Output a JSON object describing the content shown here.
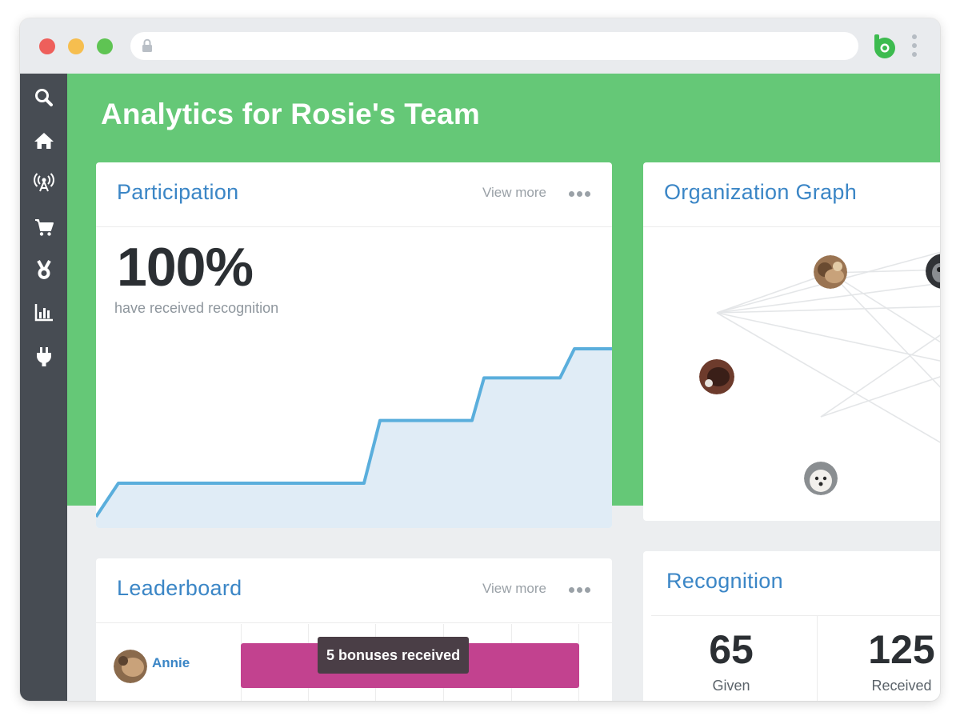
{
  "browser": {
    "controls": [
      "close",
      "minimize",
      "maximize"
    ],
    "address_icon": "lock-icon",
    "brand_icon": "bonusly-logo-icon",
    "menu_icon": "kebab-menu-icon"
  },
  "sidebar": {
    "items": [
      {
        "icon": "search-icon"
      },
      {
        "icon": "home-icon"
      },
      {
        "icon": "broadcast-icon"
      },
      {
        "icon": "cart-icon"
      },
      {
        "icon": "medal-icon"
      },
      {
        "icon": "bar-chart-icon"
      },
      {
        "icon": "plug-icon"
      }
    ]
  },
  "header": {
    "title": "Analytics for Rosie's Team"
  },
  "participation": {
    "title": "Participation",
    "view_more": "View more",
    "value": "100%",
    "caption": "have received recognition",
    "trend": [
      0.05,
      0.2,
      0.2,
      0.2,
      0.2,
      0.48,
      0.48,
      0.67,
      0.67,
      0.8,
      0.8
    ]
  },
  "org_graph": {
    "title": "Organization Graph"
  },
  "leaderboard": {
    "title": "Leaderboard",
    "view_more": "View more",
    "rows": [
      {
        "name": "Annie",
        "bar_fraction": 1.0
      }
    ],
    "tooltip": "5 bonuses received"
  },
  "recognition": {
    "title": "Recognition",
    "given_value": "65",
    "given_label": "Given",
    "received_value": "125",
    "received_label": "Received"
  },
  "colors": {
    "brand_green": "#65c877",
    "sidebar": "#474c53",
    "link_blue": "#3b86c6",
    "chart_line": "#5aaedc",
    "chart_fill": "#e0ecf6",
    "leaderboard_bar": "#c2428f"
  }
}
